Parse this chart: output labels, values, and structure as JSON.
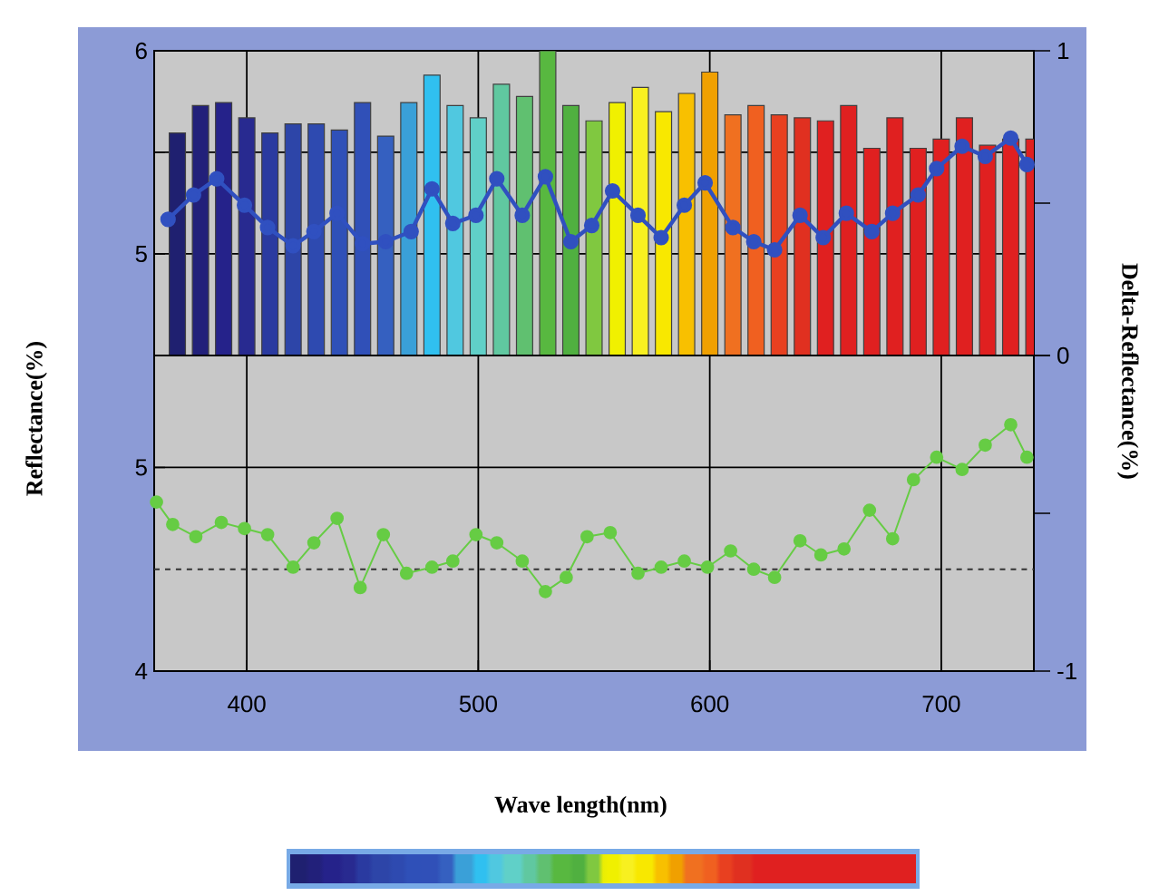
{
  "chart_data": [
    {
      "type": "bar",
      "xlim": [
        360,
        740
      ],
      "xticks": [
        400,
        500,
        600,
        700
      ],
      "ylim": [
        4.5,
        6
      ],
      "yticks": [
        5,
        {
          "value": 5.5,
          "label": null
        },
        6
      ],
      "y2lim": [
        0,
        1
      ],
      "y2ticks": [
        {
          "value": 0,
          "label": null
        },
        {
          "value": 0.5,
          "label": null
        },
        1
      ],
      "tick_labels": "y",
      "grid": true,
      "series": [
        {
          "axis": "y2",
          "x": [
            370,
            380,
            390,
            400,
            410,
            420,
            430,
            440,
            450,
            460,
            470,
            480,
            490,
            500,
            510,
            520,
            530,
            540,
            550,
            560,
            570,
            580,
            590,
            600,
            610,
            620,
            630,
            640,
            650,
            660,
            670,
            680,
            690,
            700,
            710,
            720,
            730,
            740
          ],
          "values": [
            0.73,
            0.82,
            0.83,
            0.78,
            0.73,
            0.76,
            0.76,
            0.74,
            0.83,
            0.72,
            0.83,
            0.92,
            0.82,
            0.78,
            0.89,
            0.85,
            1.0,
            0.82,
            0.77,
            0.83,
            0.88,
            0.8,
            0.86,
            0.93,
            0.79,
            0.82,
            0.79,
            0.78,
            0.77,
            0.82,
            0.68,
            0.78,
            0.68,
            0.71,
            0.78,
            0.69,
            0.71,
            0.71
          ],
          "colors": [
            "#1f2070",
            "#22207a",
            "#25228a",
            "#282a90",
            "#2a3aa0",
            "#2d45a8",
            "#2e4ab0",
            "#2f50b8",
            "#3050b8",
            "#3560c0",
            "#3aa0d8",
            "#30c0f0",
            "#50c8e0",
            "#60d0c8",
            "#60c8a0",
            "#60c070",
            "#58b840",
            "#50b040",
            "#80c840",
            "#f0f000",
            "#f8f020",
            "#f8e800",
            "#f8c000",
            "#f0a000",
            "#f07020",
            "#f06020",
            "#e84020",
            "#e03020",
            "#e02020",
            "#e02020",
            "#e02020",
            "#e02020",
            "#e02020",
            "#e02020",
            "#e02020",
            "#e02020",
            "#e02020",
            "#e02020"
          ]
        },
        {
          "type": "line",
          "axis": "y",
          "color": "#3050c0",
          "marker": "circle",
          "x": [
            366,
            377,
            387,
            399,
            409,
            420,
            429,
            439,
            450,
            460,
            471,
            480,
            489,
            499,
            508,
            519,
            529,
            540,
            549,
            558,
            569,
            579,
            589,
            598,
            610,
            619,
            628,
            639,
            649,
            659,
            670,
            679,
            690,
            698,
            709,
            719,
            730,
            737
          ],
          "values": [
            5.17,
            5.29,
            5.37,
            5.24,
            5.13,
            5.04,
            5.11,
            5.2,
            5.05,
            5.06,
            5.11,
            5.32,
            5.15,
            5.19,
            5.37,
            5.19,
            5.38,
            5.06,
            5.14,
            5.31,
            5.19,
            5.08,
            5.24,
            5.35,
            5.13,
            5.06,
            5.02,
            5.19,
            5.08,
            5.2,
            5.11,
            5.2,
            5.29,
            5.42,
            5.53,
            5.48,
            5.57,
            5.44
          ]
        }
      ]
    },
    {
      "type": "line",
      "xlabel": "Wave length(nm)",
      "ylabel": "Reflectance(%)",
      "y2label": "Delta-Reflectance(%)",
      "xlim": [
        360,
        740
      ],
      "xticks": [
        400,
        500,
        600,
        700
      ],
      "ylim": [
        4,
        5.55
      ],
      "yticks": [
        4,
        5
      ],
      "y2lim": [
        -1,
        0
      ],
      "y2ticks": [
        -1,
        {
          "value": -0.5,
          "label": null
        },
        0
      ],
      "grid": true,
      "ref_lines": [
        {
          "axis": "y",
          "value": 4.5,
          "line_style": "dashed",
          "color": "#333333"
        }
      ],
      "series": [
        {
          "axis": "y",
          "color": "#66cc44",
          "marker": "circle",
          "x": [
            361,
            368,
            378,
            389,
            399,
            409,
            420,
            429,
            439,
            449,
            459,
            469,
            480,
            489,
            499,
            508,
            519,
            529,
            538,
            547,
            557,
            569,
            579,
            589,
            599,
            609,
            619,
            628,
            639,
            648,
            658,
            669,
            679,
            688,
            698,
            709,
            719,
            730,
            737
          ],
          "values": [
            4.83,
            4.72,
            4.66,
            4.73,
            4.7,
            4.67,
            4.51,
            4.63,
            4.75,
            4.41,
            4.67,
            4.48,
            4.51,
            4.54,
            4.67,
            4.63,
            4.54,
            4.39,
            4.46,
            4.66,
            4.68,
            4.48,
            4.51,
            4.54,
            4.51,
            4.59,
            4.5,
            4.46,
            4.64,
            4.57,
            4.6,
            4.79,
            4.65,
            4.94,
            5.05,
            4.99,
            5.11,
            5.21,
            5.05
          ]
        }
      ]
    }
  ]
}
